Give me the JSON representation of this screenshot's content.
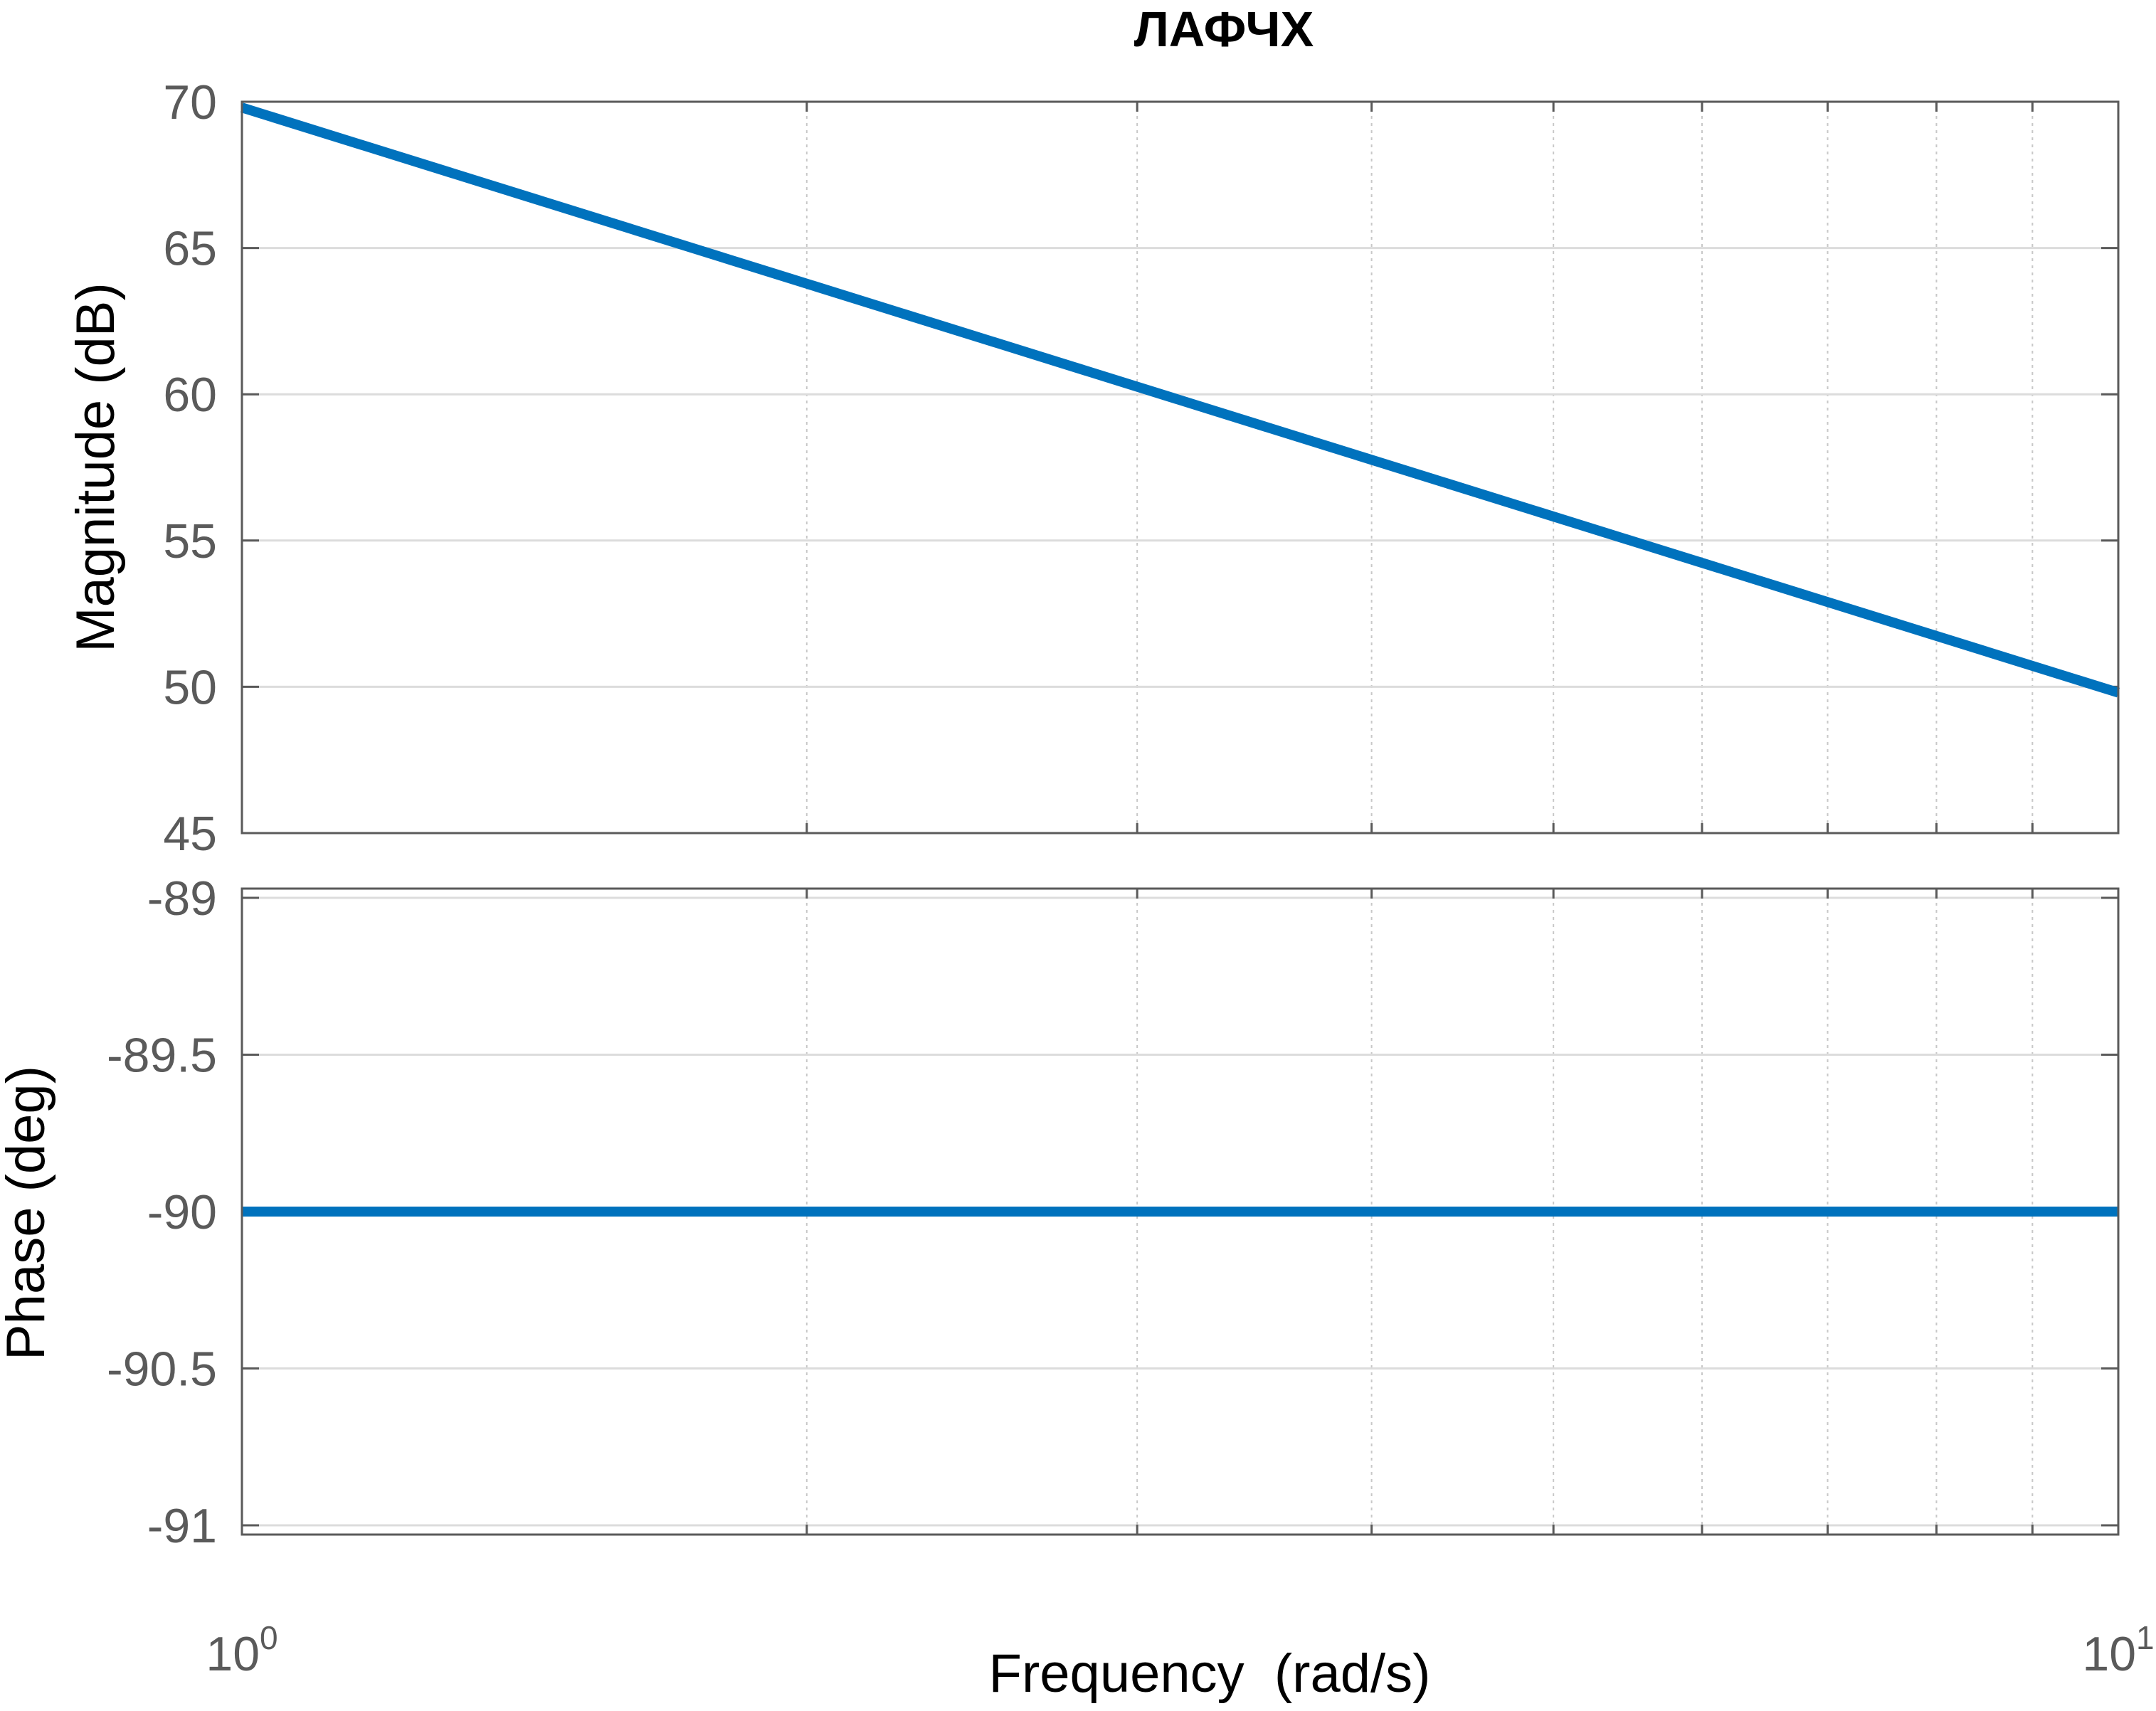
{
  "chart_data": [
    {
      "type": "line",
      "title": "ЛАФЧХ",
      "xscale": "log",
      "xlim": [
        1,
        10
      ],
      "ylim": [
        45,
        70
      ],
      "ylabel": "Magnitude (dB)",
      "yticks": [
        "70",
        "65",
        "60",
        "55",
        "50",
        "45"
      ],
      "ytick_values": [
        70,
        65,
        60,
        55,
        50,
        45
      ],
      "grid": true,
      "series": [
        {
          "color": "#0072bd",
          "x": [
            1,
            10
          ],
          "y": [
            69.8,
            49.8
          ]
        }
      ]
    },
    {
      "type": "line",
      "xscale": "log",
      "xlim": [
        1,
        10
      ],
      "ylim": [
        -91,
        -89
      ],
      "ylabel": "Phase (deg)",
      "yticks": [
        "-89",
        "-89.5",
        "-90",
        "-90.5",
        "-91"
      ],
      "ytick_values": [
        -89,
        -89.5,
        -90,
        -90.5,
        -91
      ],
      "xlabel": "Frequency  (rad/s)",
      "xticks": [
        {
          "base": "10",
          "exp": "0",
          "value": 1
        },
        {
          "base": "10",
          "exp": "1",
          "value": 10
        }
      ],
      "grid": true,
      "series": [
        {
          "color": "#0072bd",
          "x": [
            1,
            10
          ],
          "y": [
            -90,
            -90
          ]
        }
      ]
    }
  ]
}
